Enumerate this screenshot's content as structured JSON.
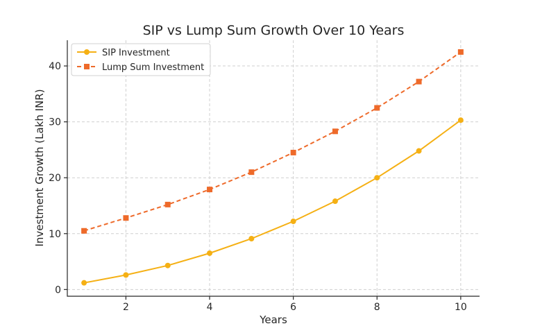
{
  "chart_data": {
    "type": "line",
    "title": "SIP vs Lump Sum Growth Over 10 Years",
    "xlabel": "Years",
    "ylabel": "Investment Growth (Lakh INR)",
    "x": [
      1,
      2,
      3,
      4,
      5,
      6,
      7,
      8,
      9,
      10
    ],
    "xlim": [
      0.6,
      10.45
    ],
    "ylim": [
      -1.2,
      44.6
    ],
    "xticks": [
      2,
      4,
      6,
      8,
      10
    ],
    "yticks": [
      0,
      10,
      20,
      30,
      40
    ],
    "grid": true,
    "legend_position": "top-left",
    "series": [
      {
        "name": "SIP Investment",
        "values": [
          1.2,
          2.6,
          4.3,
          6.5,
          9.1,
          12.2,
          15.8,
          20.0,
          24.8,
          30.3
        ],
        "color": "#f5b014",
        "marker": "circle",
        "line_style": "solid"
      },
      {
        "name": "Lump Sum Investment",
        "values": [
          10.5,
          12.8,
          15.2,
          17.9,
          21.0,
          24.5,
          28.3,
          32.5,
          37.2,
          42.5
        ],
        "color": "#ee6a2a",
        "marker": "square",
        "line_style": "dashed"
      }
    ]
  }
}
